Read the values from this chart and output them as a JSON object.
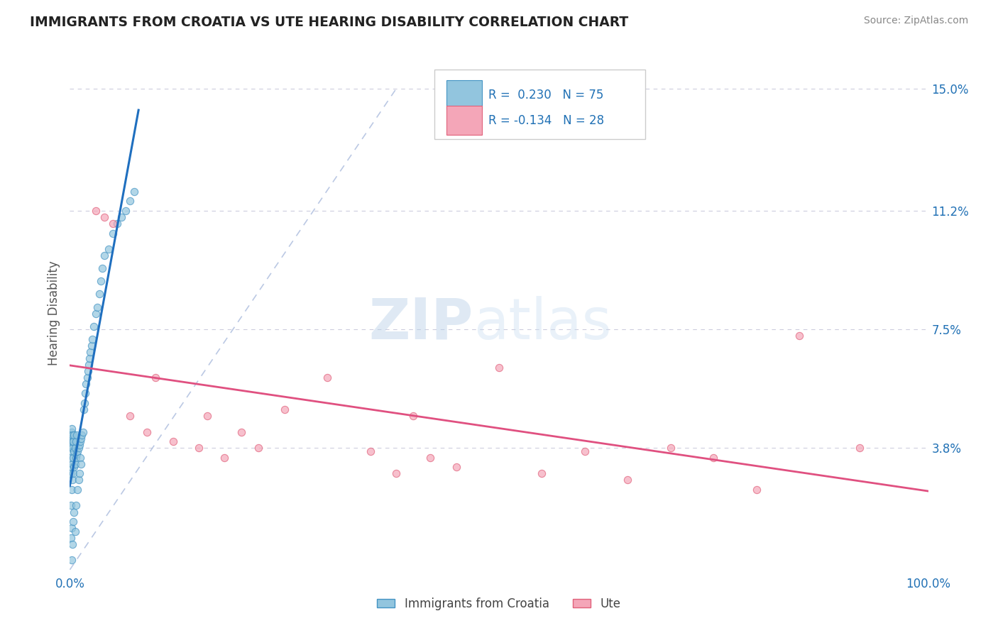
{
  "title": "IMMIGRANTS FROM CROATIA VS UTE HEARING DISABILITY CORRELATION CHART",
  "source": "Source: ZipAtlas.com",
  "ylabel": "Hearing Disability",
  "xlim": [
    0.0,
    1.0
  ],
  "ylim": [
    0.0,
    0.16
  ],
  "ytick_vals": [
    0.038,
    0.075,
    0.112,
    0.15
  ],
  "ytick_labels": [
    "3.8%",
    "7.5%",
    "11.2%",
    "15.0%"
  ],
  "xtick_vals": [
    0.0,
    0.1,
    0.2,
    0.3,
    0.4,
    0.5,
    0.6,
    0.7,
    0.8,
    0.9,
    1.0
  ],
  "xtick_labels": [
    "0.0%",
    "",
    "",
    "",
    "",
    "",
    "",
    "",
    "",
    "",
    "100.0%"
  ],
  "croatia_color": "#92c5de",
  "croatia_edge_color": "#4393c3",
  "ute_color": "#f4a6b8",
  "ute_edge_color": "#e0607a",
  "croatia_line_color": "#1f6fbf",
  "ute_line_color": "#e05080",
  "diag_color": "#aabbdd",
  "R_croatia": 0.23,
  "N_croatia": 75,
  "R_ute": -0.134,
  "N_ute": 28,
  "croatia_x": [
    0.001,
    0.001,
    0.001,
    0.001,
    0.001,
    0.001,
    0.001,
    0.002,
    0.002,
    0.002,
    0.002,
    0.002,
    0.002,
    0.002,
    0.002,
    0.002,
    0.003,
    0.003,
    0.003,
    0.003,
    0.003,
    0.003,
    0.004,
    0.004,
    0.004,
    0.004,
    0.005,
    0.005,
    0.005,
    0.005,
    0.006,
    0.006,
    0.006,
    0.007,
    0.007,
    0.007,
    0.008,
    0.008,
    0.009,
    0.009,
    0.01,
    0.01,
    0.011,
    0.011,
    0.012,
    0.012,
    0.013,
    0.013,
    0.014,
    0.015,
    0.016,
    0.017,
    0.018,
    0.019,
    0.02,
    0.021,
    0.022,
    0.023,
    0.024,
    0.025,
    0.026,
    0.028,
    0.03,
    0.032,
    0.034,
    0.036,
    0.038,
    0.04,
    0.045,
    0.05,
    0.055,
    0.06,
    0.065,
    0.07,
    0.075
  ],
  "croatia_y": [
    0.02,
    0.03,
    0.035,
    0.038,
    0.04,
    0.042,
    0.01,
    0.025,
    0.032,
    0.037,
    0.039,
    0.041,
    0.043,
    0.044,
    0.013,
    0.003,
    0.028,
    0.033,
    0.038,
    0.04,
    0.042,
    0.008,
    0.03,
    0.035,
    0.04,
    0.015,
    0.032,
    0.037,
    0.042,
    0.018,
    0.033,
    0.038,
    0.012,
    0.035,
    0.04,
    0.02,
    0.036,
    0.042,
    0.037,
    0.025,
    0.038,
    0.028,
    0.039,
    0.03,
    0.04,
    0.035,
    0.041,
    0.033,
    0.042,
    0.043,
    0.05,
    0.052,
    0.055,
    0.058,
    0.06,
    0.062,
    0.064,
    0.066,
    0.068,
    0.07,
    0.072,
    0.076,
    0.08,
    0.082,
    0.086,
    0.09,
    0.094,
    0.098,
    0.1,
    0.105,
    0.108,
    0.11,
    0.112,
    0.115,
    0.118
  ],
  "ute_x": [
    0.03,
    0.04,
    0.05,
    0.07,
    0.09,
    0.1,
    0.12,
    0.15,
    0.16,
    0.18,
    0.2,
    0.22,
    0.25,
    0.3,
    0.35,
    0.38,
    0.4,
    0.42,
    0.45,
    0.5,
    0.55,
    0.6,
    0.65,
    0.7,
    0.75,
    0.8,
    0.85,
    0.92
  ],
  "ute_y": [
    0.112,
    0.11,
    0.108,
    0.048,
    0.043,
    0.06,
    0.04,
    0.038,
    0.048,
    0.035,
    0.043,
    0.038,
    0.05,
    0.06,
    0.037,
    0.03,
    0.048,
    0.035,
    0.032,
    0.063,
    0.03,
    0.037,
    0.028,
    0.038,
    0.035,
    0.025,
    0.073,
    0.038
  ]
}
